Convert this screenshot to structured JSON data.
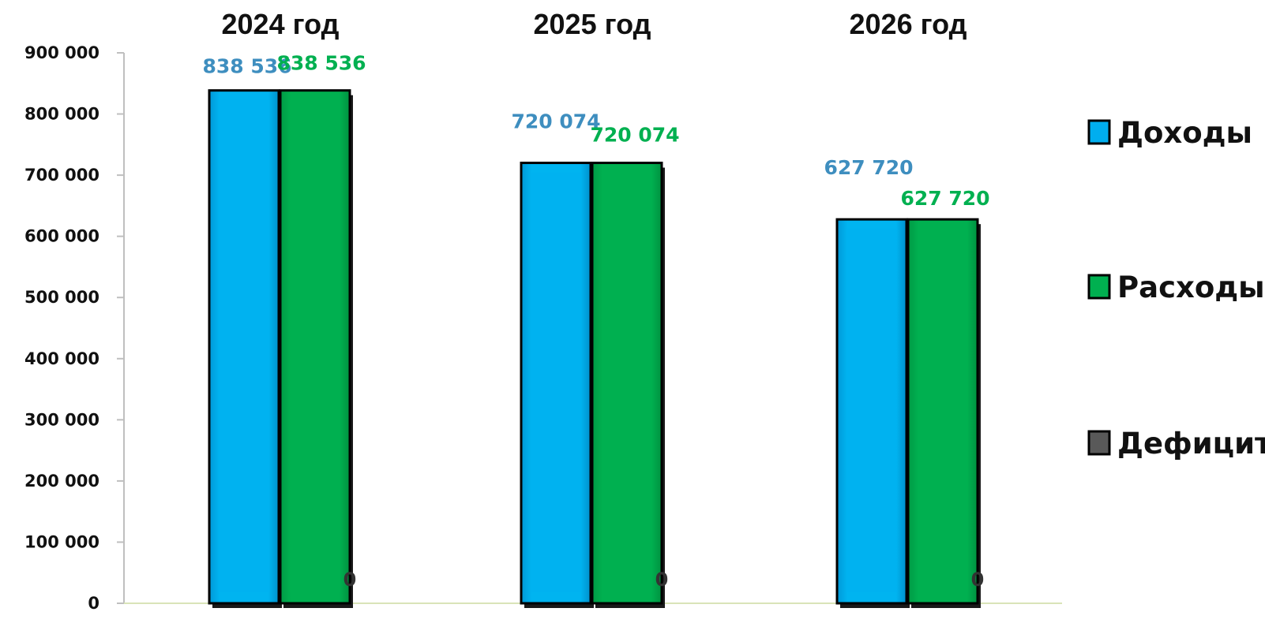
{
  "chart_data": {
    "type": "bar",
    "categories": [
      "2024 год",
      "2025 год",
      "2026 год"
    ],
    "series": [
      {
        "name": "Доходы",
        "values": [
          838536,
          720074,
          627720
        ],
        "labels": [
          "838 536",
          "720 074",
          "627 720"
        ],
        "color": "#00AEEF",
        "label_color": "#3E8EBF"
      },
      {
        "name": "Расходы",
        "values": [
          838536,
          720074,
          627720
        ],
        "labels": [
          "838 536",
          "720 074",
          "627 720"
        ],
        "color": "#00B050",
        "label_color": "#00B050"
      },
      {
        "name": "Дефицит",
        "values": [
          0,
          0,
          0
        ],
        "labels": [
          "0",
          "0",
          "0"
        ],
        "color": "#595959",
        "label_color": "#333333"
      }
    ],
    "ylim": [
      0,
      900000
    ],
    "yticks": [
      0,
      100000,
      200000,
      300000,
      400000,
      500000,
      600000,
      700000,
      800000,
      900000
    ],
    "ytick_labels": [
      "0",
      "100 000",
      "200 000",
      "300 000",
      "400 000",
      "500 000",
      "600 000",
      "700 000",
      "800 000",
      "900 000"
    ],
    "legend_position": "right",
    "grid": false,
    "xlabel": "",
    "ylabel": ""
  }
}
